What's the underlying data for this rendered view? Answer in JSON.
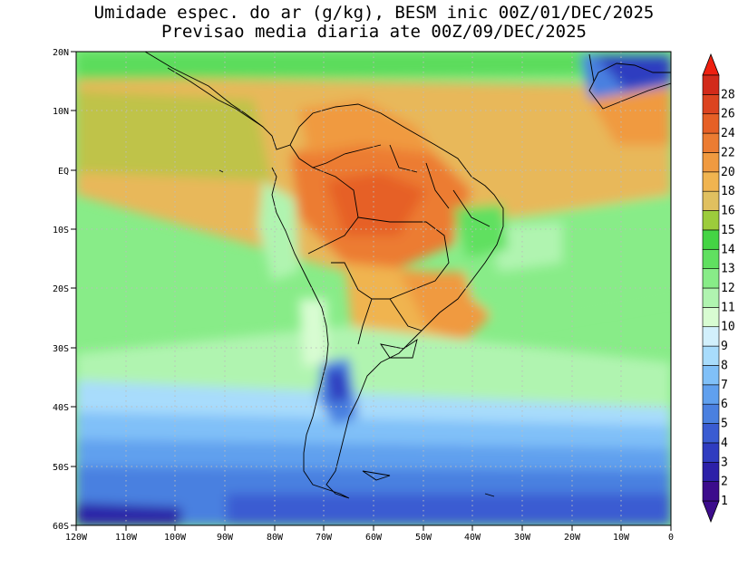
{
  "title": {
    "line1": "Umidade espec. do ar (g/kg), BESM inic 00Z/01/DEC/2025",
    "line2": "Previsao media diaria ate 00Z/09/DEC/2025"
  },
  "axes": {
    "lat_labels": [
      "20N",
      "10N",
      "EQ",
      "10S",
      "20S",
      "30S",
      "40S",
      "50S",
      "60S"
    ],
    "lat_values": [
      20,
      10,
      0,
      -10,
      -20,
      -30,
      -40,
      -50,
      -60
    ],
    "lon_labels": [
      "120W",
      "110W",
      "100W",
      "90W",
      "80W",
      "70W",
      "60W",
      "50W",
      "40W",
      "30W",
      "20W",
      "10W",
      "0"
    ],
    "lon_values": [
      -120,
      -110,
      -100,
      -90,
      -80,
      -70,
      -60,
      -50,
      -40,
      -30,
      -20,
      -10,
      0
    ],
    "lon_range": [
      -120,
      0
    ],
    "lat_range": [
      -60,
      20
    ]
  },
  "colorbar": {
    "labels": [
      "1",
      "2",
      "3",
      "4",
      "5",
      "6",
      "7",
      "8",
      "9",
      "10",
      "11",
      "12",
      "13",
      "14",
      "15",
      "16",
      "18",
      "20",
      "22",
      "24",
      "26",
      "28"
    ],
    "colors": [
      "#3c0c8c",
      "#2c20a8",
      "#2f3cc0",
      "#3a5cd2",
      "#4a80e0",
      "#60a0ee",
      "#80c0f8",
      "#a8dcfc",
      "#d2f0fc",
      "#d8fcd2",
      "#b0f4b0",
      "#88ec88",
      "#60e060",
      "#44d444",
      "#9ccc3c",
      "#e0c060",
      "#f0b450",
      "#f09a40",
      "#ec7c32",
      "#e66026",
      "#dc4420",
      "#d22a1a"
    ]
  }
}
